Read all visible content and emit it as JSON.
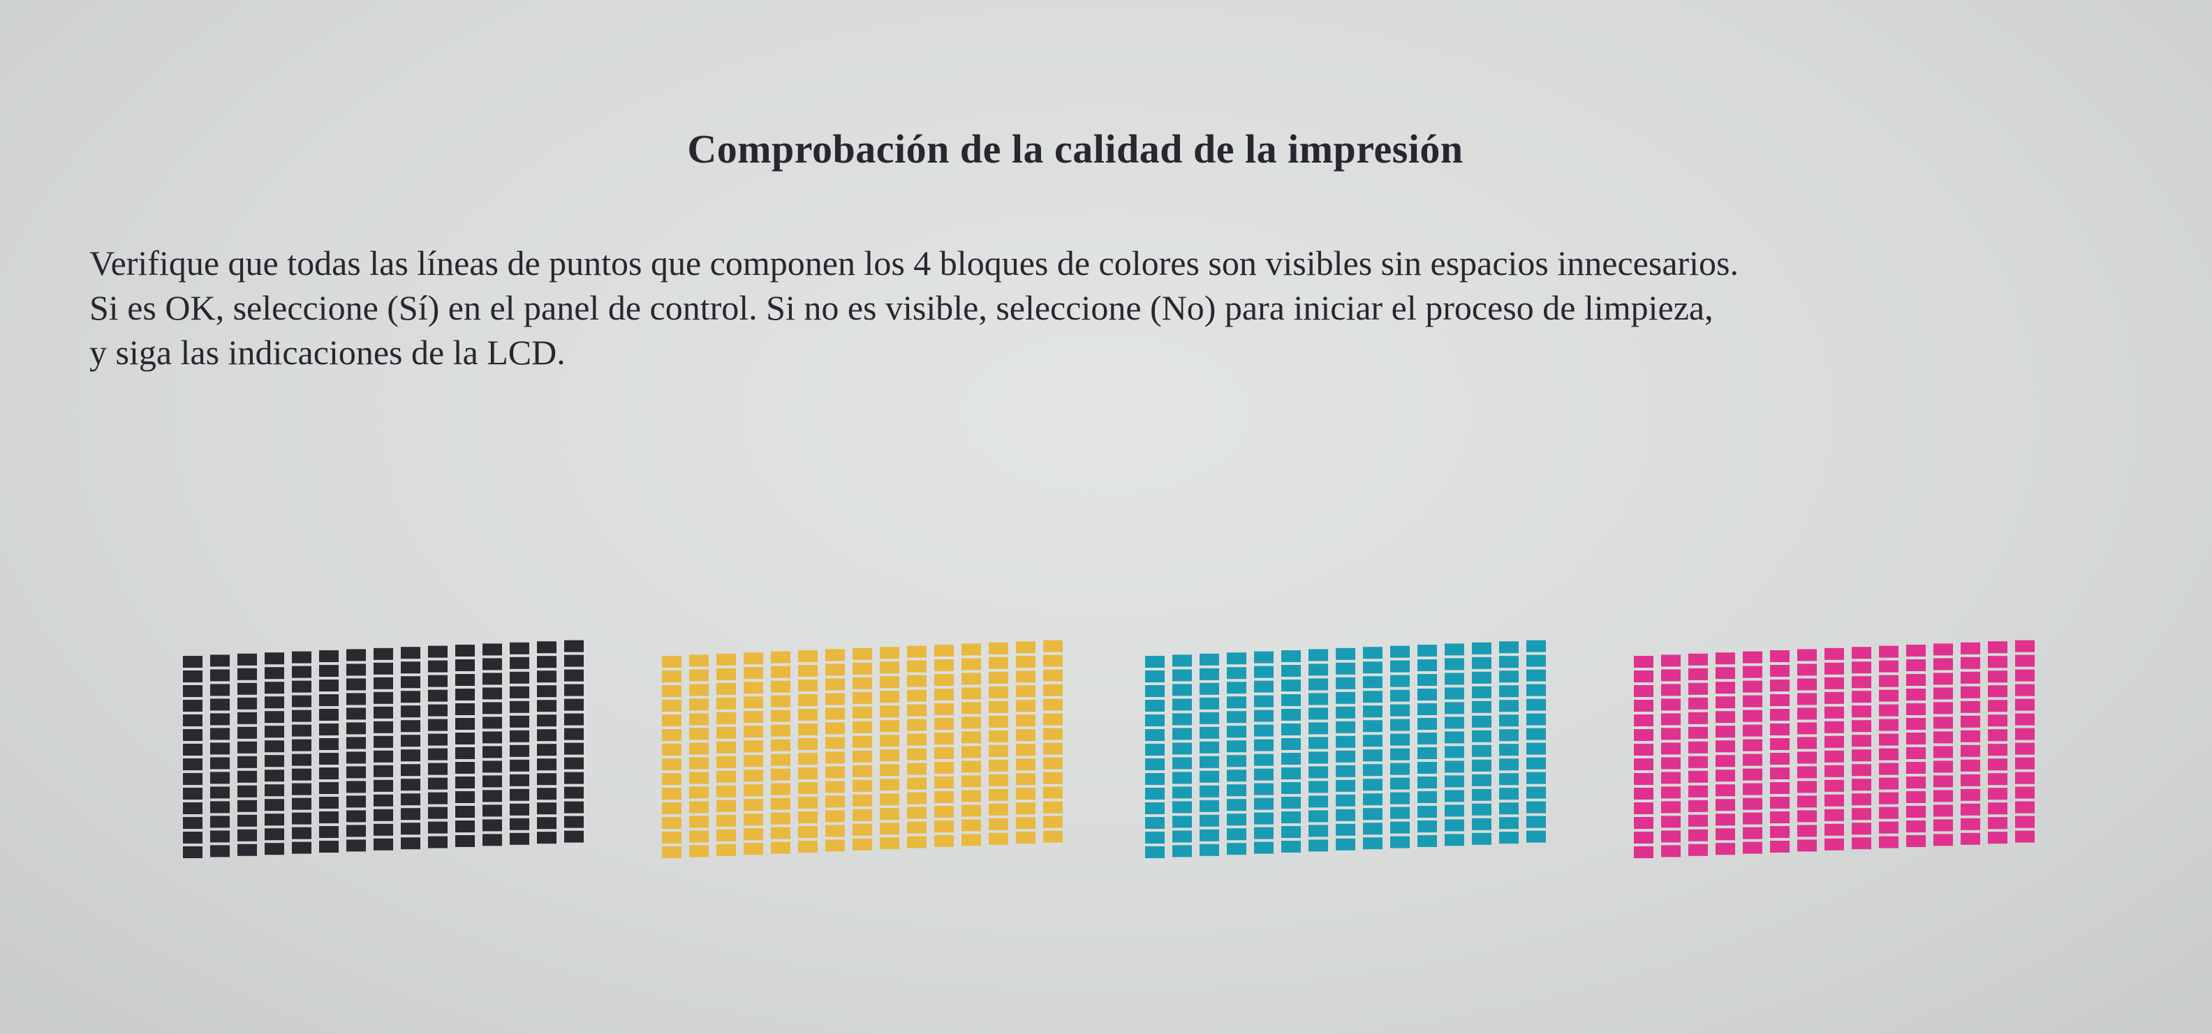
{
  "document": {
    "title": "Comprobación de la calidad de la impresión",
    "paragraph_lines": [
      "Verifique que todas las líneas de puntos que componen los 4 bloques de colores son visibles sin espacios innecesarios.",
      "Si es OK, seleccione (Sí) en el panel de control. Si no es visible, seleccione (No) para iniciar el proceso de limpieza,",
      "y siga las indicaciones de la LCD."
    ]
  },
  "test_pattern": {
    "columns": 15,
    "rows": 14,
    "blocks": [
      {
        "name": "black",
        "color": "#2b2830"
      },
      {
        "name": "yellow",
        "color": "#e9b83e"
      },
      {
        "name": "cyan",
        "color": "#1a9bb4"
      },
      {
        "name": "magenta",
        "color": "#e0318e"
      }
    ]
  }
}
